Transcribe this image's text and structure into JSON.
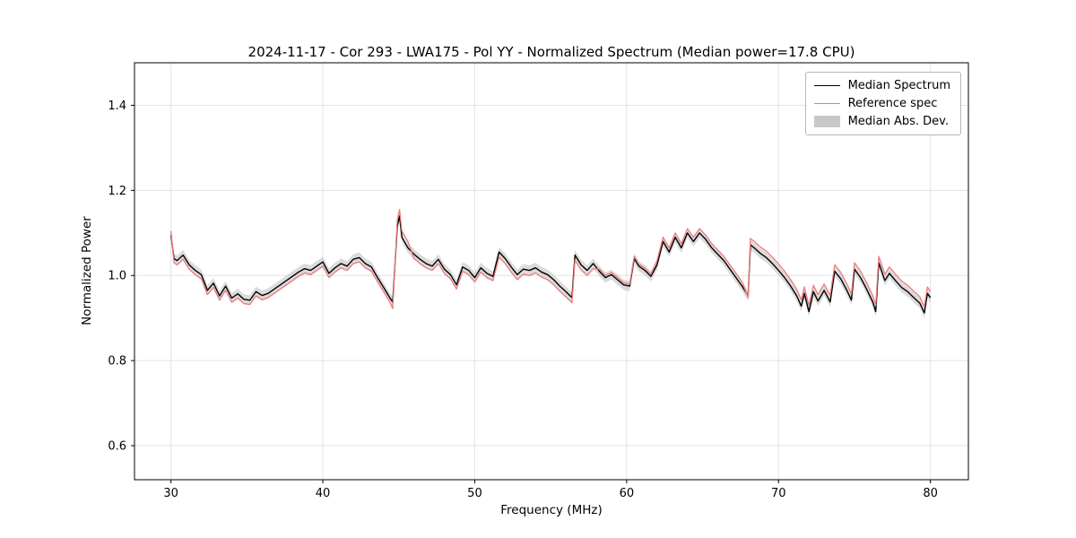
{
  "title": "2024-11-17 - Cor 293 - LWA175 - Pol YY - Normalized Spectrum (Median power=17.8 CPU)",
  "xlabel": "Frequency (MHz)",
  "ylabel": "Normalized Power",
  "legend": {
    "entries": [
      {
        "label": "Median Spectrum",
        "color": "#000000",
        "type": "line"
      },
      {
        "label": "Reference spec",
        "color": "#ee7a7a",
        "type": "line"
      },
      {
        "label": "Median Abs. Dev.",
        "color": "#c8c8c8",
        "type": "patch"
      }
    ]
  },
  "chart_data": {
    "type": "line",
    "title": "2024-11-17 - Cor 293 - LWA175 - Pol YY - Normalized Spectrum (Median power=17.8 CPU)",
    "xlabel": "Frequency (MHz)",
    "ylabel": "Normalized Power",
    "xlim": [
      27.6,
      82.5
    ],
    "ylim": [
      0.52,
      1.5
    ],
    "x_ticks": [
      30,
      40,
      50,
      60,
      70,
      80
    ],
    "y_ticks": [
      0.6,
      0.8,
      1.0,
      1.2,
      1.4
    ],
    "grid": true,
    "legend_position": "upper right",
    "x": [
      30.0,
      30.2,
      30.4,
      30.8,
      31.2,
      31.6,
      32.0,
      32.4,
      32.8,
      33.2,
      33.6,
      34.0,
      34.4,
      34.8,
      35.2,
      35.6,
      36.0,
      36.4,
      36.8,
      37.2,
      37.6,
      38.0,
      38.4,
      38.8,
      39.2,
      39.6,
      40.0,
      40.4,
      40.8,
      41.2,
      41.6,
      42.0,
      42.4,
      42.8,
      43.2,
      43.6,
      44.0,
      44.4,
      44.6,
      44.9,
      45.05,
      45.2,
      45.6,
      46.0,
      46.4,
      46.8,
      47.2,
      47.6,
      48.0,
      48.4,
      48.8,
      49.2,
      49.6,
      50.0,
      50.4,
      50.8,
      51.2,
      51.6,
      52.0,
      52.4,
      52.8,
      53.2,
      53.6,
      54.0,
      54.4,
      54.8,
      55.2,
      55.6,
      56.0,
      56.4,
      56.6,
      57.0,
      57.4,
      57.8,
      58.2,
      58.6,
      59.0,
      59.4,
      59.8,
      60.2,
      60.5,
      60.8,
      61.2,
      61.6,
      62.0,
      62.4,
      62.8,
      63.2,
      63.6,
      64.0,
      64.4,
      64.8,
      65.2,
      65.6,
      66.0,
      66.4,
      66.8,
      67.2,
      67.6,
      68.0,
      68.15,
      68.4,
      68.8,
      69.2,
      69.6,
      70.0,
      70.4,
      70.8,
      71.2,
      71.5,
      71.7,
      72.0,
      72.3,
      72.6,
      73.0,
      73.4,
      73.7,
      74.1,
      74.5,
      74.8,
      75.0,
      75.4,
      75.8,
      76.2,
      76.4,
      76.6,
      77.0,
      77.3,
      77.7,
      78.1,
      78.5,
      78.9,
      79.3,
      79.6,
      79.8,
      80.0
    ],
    "series": [
      {
        "name": "Median Spectrum",
        "color": "#000000",
        "values": [
          1.095,
          1.04,
          1.035,
          1.048,
          1.025,
          1.012,
          1.002,
          0.965,
          0.982,
          0.952,
          0.975,
          0.947,
          0.957,
          0.944,
          0.942,
          0.962,
          0.953,
          0.958,
          0.968,
          0.978,
          0.988,
          0.998,
          1.008,
          1.016,
          1.012,
          1.022,
          1.032,
          1.005,
          1.018,
          1.028,
          1.022,
          1.038,
          1.042,
          1.028,
          1.02,
          0.995,
          0.972,
          0.948,
          0.938,
          1.115,
          1.14,
          1.09,
          1.065,
          1.05,
          1.038,
          1.028,
          1.022,
          1.038,
          1.015,
          1.002,
          0.978,
          1.02,
          1.012,
          0.995,
          1.018,
          1.005,
          0.998,
          1.055,
          1.04,
          1.02,
          1.002,
          1.015,
          1.012,
          1.018,
          1.008,
          1.002,
          0.99,
          0.975,
          0.962,
          0.948,
          1.048,
          1.025,
          1.012,
          1.028,
          1.01,
          0.995,
          1.002,
          0.99,
          0.978,
          0.975,
          1.04,
          1.022,
          1.012,
          0.998,
          1.025,
          1.08,
          1.055,
          1.09,
          1.065,
          1.1,
          1.08,
          1.1,
          1.085,
          1.065,
          1.05,
          1.035,
          1.015,
          0.995,
          0.975,
          0.952,
          1.072,
          1.065,
          1.052,
          1.042,
          1.028,
          1.012,
          0.995,
          0.975,
          0.952,
          0.928,
          0.958,
          0.915,
          0.962,
          0.94,
          0.965,
          0.938,
          1.01,
          0.992,
          0.965,
          0.942,
          1.015,
          0.995,
          0.968,
          0.938,
          0.915,
          1.03,
          0.988,
          1.005,
          0.988,
          0.972,
          0.962,
          0.948,
          0.935,
          0.912,
          0.958,
          0.948
        ]
      },
      {
        "name": "Reference spec",
        "color": "#ee7a7a",
        "values": [
          1.105,
          1.03,
          1.025,
          1.038,
          1.015,
          1.002,
          0.992,
          0.955,
          0.972,
          0.942,
          0.965,
          0.937,
          0.947,
          0.934,
          0.932,
          0.952,
          0.943,
          0.948,
          0.958,
          0.968,
          0.978,
          0.988,
          0.998,
          1.006,
          1.002,
          1.012,
          1.022,
          0.995,
          1.008,
          1.018,
          1.012,
          1.028,
          1.032,
          1.018,
          1.01,
          0.985,
          0.962,
          0.938,
          0.922,
          1.13,
          1.155,
          1.105,
          1.08,
          1.04,
          1.028,
          1.018,
          1.012,
          1.028,
          1.005,
          0.992,
          0.968,
          1.01,
          1.002,
          0.985,
          1.008,
          0.995,
          0.988,
          1.043,
          1.028,
          1.008,
          0.99,
          1.003,
          1.0,
          1.006,
          0.996,
          0.99,
          0.978,
          0.963,
          0.95,
          0.936,
          1.036,
          1.013,
          1.0,
          1.016,
          1.015,
          1.0,
          1.007,
          0.995,
          0.983,
          0.98,
          1.045,
          1.027,
          1.017,
          1.003,
          1.035,
          1.09,
          1.065,
          1.1,
          1.075,
          1.11,
          1.09,
          1.11,
          1.095,
          1.075,
          1.06,
          1.045,
          1.025,
          1.005,
          0.985,
          0.948,
          1.087,
          1.08,
          1.067,
          1.057,
          1.043,
          1.027,
          1.01,
          0.99,
          0.967,
          0.943,
          0.973,
          0.93,
          0.977,
          0.955,
          0.98,
          0.953,
          1.025,
          1.007,
          0.98,
          0.957,
          1.03,
          1.01,
          0.983,
          0.953,
          0.93,
          1.045,
          1.003,
          1.02,
          1.003,
          0.987,
          0.977,
          0.963,
          0.95,
          0.927,
          0.973,
          0.963
        ]
      },
      {
        "name": "Median Abs. Dev.",
        "color": "#c8c8c8",
        "band_center": "Median Spectrum",
        "band_halfwidth": 0.012
      }
    ]
  }
}
